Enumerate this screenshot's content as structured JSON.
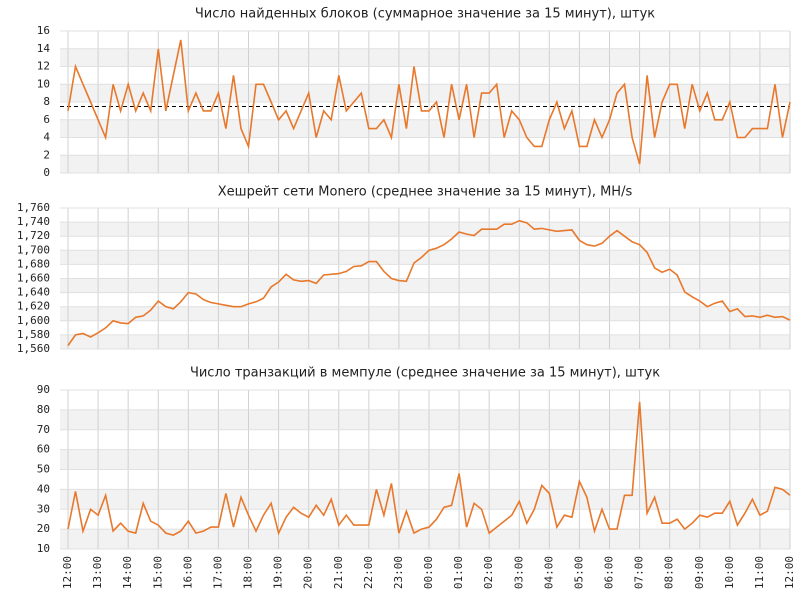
{
  "chart_data": [
    {
      "type": "line",
      "title": "Число найденных блоков (суммарное значение за 15 минут), штук",
      "color": "#e8782c",
      "ylim": [
        0,
        16
      ],
      "yticks": [
        0,
        2,
        4,
        6,
        8,
        10,
        12,
        14,
        16
      ],
      "grid": true,
      "reference_line": 7.5,
      "values": [
        7,
        12,
        10,
        8,
        6,
        4,
        10,
        7,
        10,
        7,
        9,
        7,
        14,
        7,
        11,
        15,
        7,
        9,
        7,
        7,
        9,
        5,
        11,
        5,
        3,
        10,
        10,
        8,
        6,
        7,
        5,
        7,
        9,
        4,
        7,
        6,
        11,
        7,
        8,
        9,
        5,
        5,
        6,
        4,
        10,
        5,
        12,
        7,
        7,
        8,
        4,
        10,
        6,
        10,
        4,
        9,
        9,
        10,
        4,
        7,
        6,
        4,
        3,
        3,
        6,
        8,
        5,
        7,
        3,
        3,
        6,
        4,
        6,
        9,
        10,
        4,
        1,
        11,
        4,
        8,
        10,
        10,
        5,
        10,
        7,
        9,
        6,
        6,
        8,
        4,
        4,
        5,
        5,
        5,
        10,
        4,
        8
      ]
    },
    {
      "type": "line",
      "title": "Хешрейт сети Monero (среднее значение за 15 минут), MH/s",
      "color": "#e8782c",
      "ylim": [
        1560,
        1760
      ],
      "grid": true,
      "yticks": [
        {
          "value": 1560,
          "label": "1,560"
        },
        {
          "value": 1580,
          "label": "1,580"
        },
        {
          "value": 1600,
          "label": "1,600"
        },
        {
          "value": 1620,
          "label": "1,620"
        },
        {
          "value": 1640,
          "label": "1,640"
        },
        {
          "value": 1660,
          "label": "1,660"
        },
        {
          "value": 1680,
          "label": "1,680"
        },
        {
          "value": 1700,
          "label": "1,700"
        },
        {
          "value": 1720,
          "label": "1,720"
        },
        {
          "value": 1740,
          "label": "1,740"
        },
        {
          "value": 1760,
          "label": "1,760"
        }
      ],
      "values": [
        1565,
        1580,
        1582,
        1577,
        1583,
        1590,
        1600,
        1597,
        1596,
        1605,
        1607,
        1615,
        1628,
        1620,
        1617,
        1627,
        1640,
        1638,
        1630,
        1626,
        1624,
        1622,
        1620,
        1620,
        1624,
        1627,
        1632,
        1648,
        1655,
        1666,
        1658,
        1656,
        1657,
        1653,
        1665,
        1666,
        1667,
        1670,
        1677,
        1678,
        1684,
        1684,
        1670,
        1660,
        1657,
        1656,
        1682,
        1690,
        1700,
        1703,
        1708,
        1716,
        1726,
        1723,
        1721,
        1730,
        1730,
        1730,
        1737,
        1737,
        1742,
        1739,
        1730,
        1731,
        1729,
        1727,
        1728,
        1729,
        1714,
        1708,
        1706,
        1710,
        1720,
        1728,
        1720,
        1712,
        1708,
        1697,
        1675,
        1669,
        1673,
        1665,
        1641,
        1634,
        1628,
        1620,
        1625,
        1628,
        1613,
        1617,
        1606,
        1607,
        1605,
        1608,
        1605,
        1606,
        1601
      ]
    },
    {
      "type": "line",
      "title": "Число транзакций в мемпуле (среднее значение за 15 минут), штук",
      "color": "#e8782c",
      "ylim": [
        10,
        90
      ],
      "yticks": [
        10,
        20,
        30,
        40,
        50,
        60,
        70,
        80,
        90
      ],
      "grid": true,
      "categories": [
        "12:00",
        null,
        null,
        null,
        "13:00",
        null,
        null,
        null,
        "14:00",
        null,
        null,
        null,
        "15:00",
        null,
        null,
        null,
        "16:00",
        null,
        null,
        null,
        "17:00",
        null,
        null,
        null,
        "18:00",
        null,
        null,
        null,
        "19:00",
        null,
        null,
        null,
        "20:00",
        null,
        null,
        null,
        "21:00",
        null,
        null,
        null,
        "22:00",
        null,
        null,
        null,
        "23:00",
        null,
        null,
        null,
        "00:00",
        null,
        null,
        null,
        "01:00",
        null,
        null,
        null,
        "02:00",
        null,
        null,
        null,
        "03:00",
        null,
        null,
        null,
        "04:00",
        null,
        null,
        null,
        "05:00",
        null,
        null,
        null,
        "06:00",
        null,
        null,
        null,
        "07:00",
        null,
        null,
        null,
        "08:00",
        null,
        null,
        null,
        "09:00",
        null,
        null,
        null,
        "10:00",
        null,
        null,
        null,
        "11:00",
        null,
        null,
        null,
        "12:00"
      ],
      "values": [
        20,
        39,
        19,
        30,
        27,
        37,
        19,
        23,
        19,
        18,
        33,
        24,
        22,
        18,
        17,
        19,
        24,
        18,
        19,
        21,
        21,
        38,
        21,
        36,
        27,
        19,
        27,
        33,
        18,
        26,
        31,
        28,
        26,
        32,
        27,
        35,
        22,
        27,
        22,
        22,
        22,
        40,
        27,
        43,
        18,
        29,
        18,
        20,
        21,
        25,
        31,
        32,
        48,
        21,
        33,
        30,
        18,
        21,
        24,
        27,
        34,
        23,
        30,
        42,
        38,
        21,
        27,
        26,
        44,
        36,
        19,
        30,
        20,
        20,
        37,
        37,
        84,
        28,
        36,
        23,
        23,
        25,
        20,
        23,
        27,
        26,
        28,
        28,
        34,
        22,
        28,
        35,
        27,
        29,
        41,
        40,
        37
      ]
    }
  ]
}
